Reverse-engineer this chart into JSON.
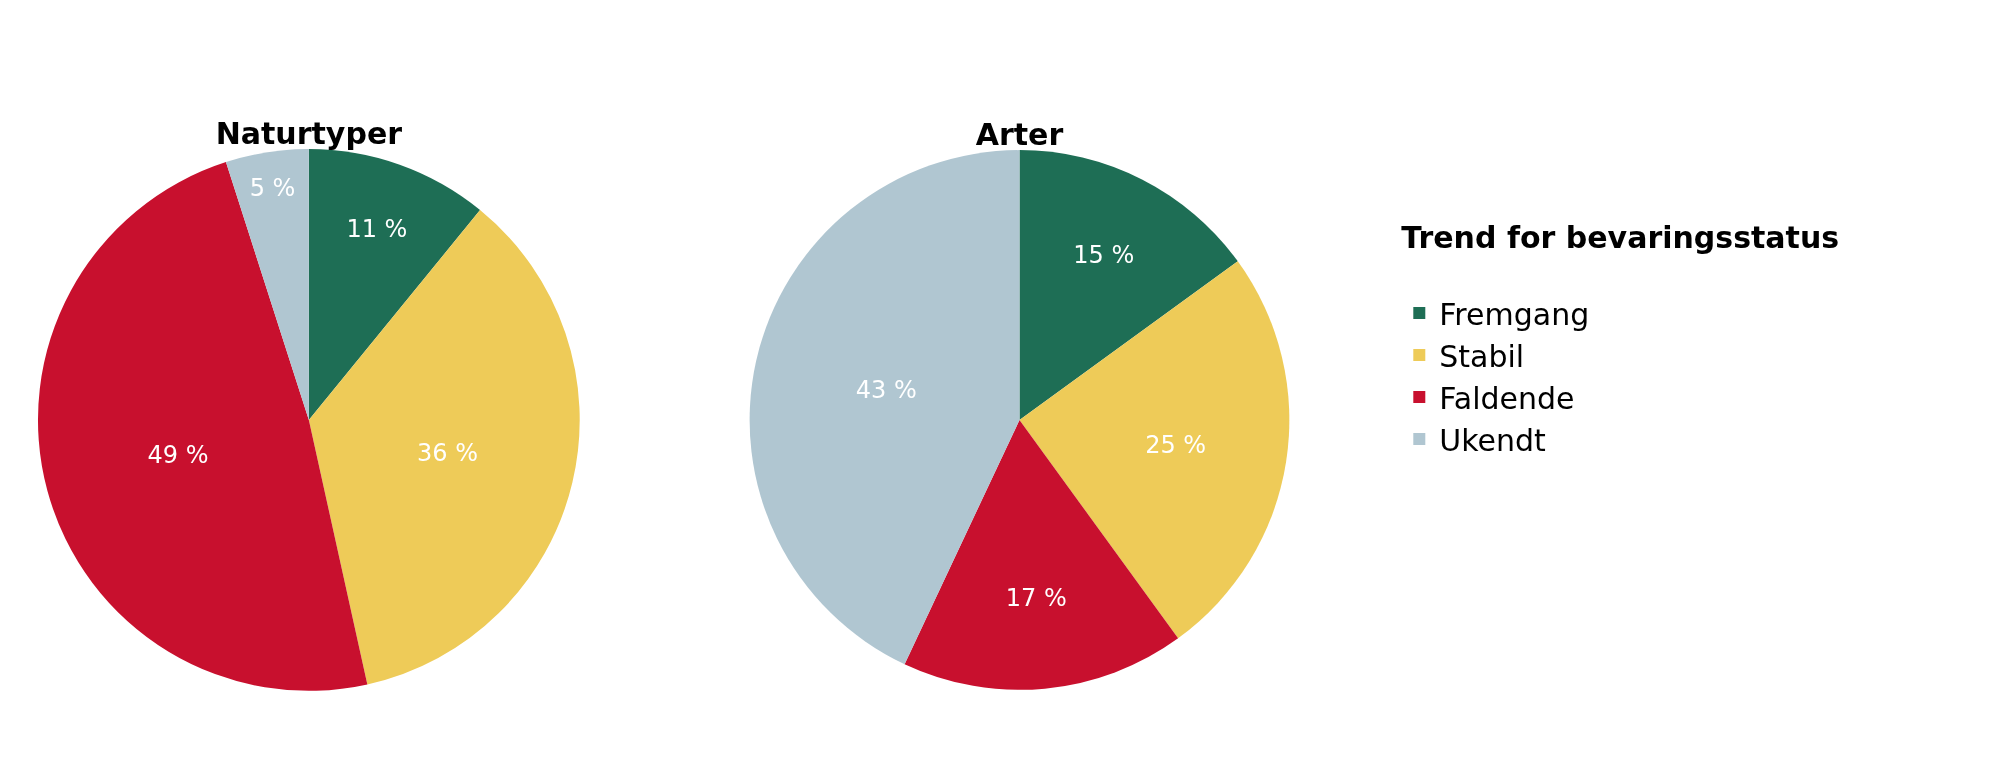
{
  "chart_data": [
    {
      "type": "pie",
      "title": "Naturtyper",
      "categories": [
        "Fremgang",
        "Stabil",
        "Faldende",
        "Ukendt"
      ],
      "values": [
        11,
        36,
        49,
        5
      ],
      "value_labels": [
        "11 %",
        "36 %",
        "49 %",
        "5 %"
      ],
      "colors": [
        "#1e6e55",
        "#eecb58",
        "#c8102e",
        "#b0c6d1"
      ],
      "legend": "right",
      "legend_title": "Trend for bevaringsstatus"
    },
    {
      "type": "pie",
      "title": "Arter",
      "categories": [
        null,
        null,
        null,
        null
      ],
      "values": [
        15,
        25,
        17,
        43
      ],
      "value_labels": [
        "15 %",
        "25 %",
        "17 %",
        "43 %"
      ],
      "colors": [
        "#1e6e55",
        "#eecb58",
        "#c8102e",
        "#b0c6d1"
      ]
    }
  ]
}
